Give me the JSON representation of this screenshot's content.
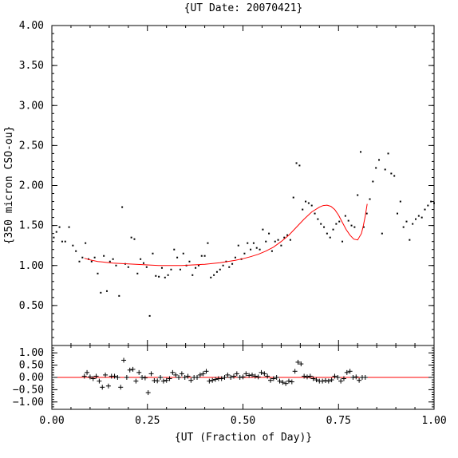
{
  "chart_data": [
    {
      "type": "scatter",
      "panel": "main",
      "title": "{UT Date: 20070421}",
      "xlabel": "",
      "ylabel": "{350 micron CSO-ou}",
      "xlim": [
        0.0,
        1.0
      ],
      "ylim": [
        0.0,
        4.0
      ],
      "xticks": [
        0.0,
        0.25,
        0.5,
        0.75,
        1.0
      ],
      "yticks": [
        0.5,
        1.0,
        1.5,
        2.0,
        2.5,
        3.0,
        3.5,
        4.0
      ],
      "ytick_labels": [
        "0.50",
        "1.00",
        "1.50",
        "2.00",
        "2.50",
        "3.00",
        "3.50",
        "4.00"
      ],
      "xtick_labels": [
        "",
        "",
        "",
        "",
        ""
      ],
      "series": [
        {
          "kind": "points",
          "color": "#000000",
          "x": [
            0.005,
            0.012,
            0.02,
            0.027,
            0.035,
            0.045,
            0.055,
            0.063,
            0.072,
            0.08,
            0.088,
            0.096,
            0.104,
            0.112,
            0.12,
            0.128,
            0.136,
            0.144,
            0.152,
            0.16,
            0.168,
            0.176,
            0.184,
            0.192,
            0.2,
            0.208,
            0.216,
            0.224,
            0.232,
            0.24,
            0.248,
            0.256,
            0.264,
            0.272,
            0.28,
            0.288,
            0.296,
            0.304,
            0.312,
            0.32,
            0.328,
            0.336,
            0.344,
            0.352,
            0.36,
            0.368,
            0.376,
            0.384,
            0.392,
            0.4,
            0.408,
            0.416,
            0.424,
            0.432,
            0.44,
            0.448,
            0.456,
            0.464,
            0.472,
            0.48,
            0.488,
            0.496,
            0.504,
            0.512,
            0.52,
            0.528,
            0.536,
            0.544,
            0.552,
            0.56,
            0.568,
            0.576,
            0.584,
            0.592,
            0.6,
            0.608,
            0.616,
            0.624,
            0.632,
            0.64,
            0.648,
            0.656,
            0.664,
            0.672,
            0.68,
            0.688,
            0.696,
            0.704,
            0.712,
            0.72,
            0.728,
            0.736,
            0.744,
            0.752,
            0.76,
            0.768,
            0.776,
            0.784,
            0.792,
            0.8,
            0.808,
            0.816,
            0.824,
            0.832,
            0.84,
            0.848,
            0.856,
            0.864,
            0.872,
            0.88,
            0.888,
            0.896,
            0.904,
            0.912,
            0.92,
            0.928,
            0.936,
            0.944,
            0.952,
            0.96,
            0.968,
            0.976,
            0.984,
            0.992,
            1.0
          ],
          "y": [
            1.35,
            1.42,
            1.48,
            1.3,
            1.3,
            1.48,
            1.25,
            1.18,
            1.05,
            1.1,
            1.28,
            1.08,
            1.05,
            1.1,
            0.9,
            0.66,
            1.12,
            0.68,
            1.05,
            1.08,
            1.0,
            0.62,
            1.73,
            1.02,
            0.98,
            1.35,
            1.33,
            0.9,
            1.08,
            1.03,
            0.98,
            0.37,
            1.15,
            0.87,
            0.86,
            0.97,
            0.85,
            0.88,
            0.95,
            1.2,
            1.1,
            0.95,
            1.15,
            1.0,
            1.05,
            0.88,
            0.97,
            1.0,
            1.12,
            1.12,
            1.28,
            0.85,
            0.88,
            0.92,
            0.95,
            1.0,
            1.05,
            0.98,
            1.02,
            1.1,
            1.25,
            1.08,
            1.15,
            1.28,
            1.2,
            1.28,
            1.22,
            1.2,
            1.45,
            1.3,
            1.4,
            1.18,
            1.3,
            1.32,
            1.25,
            1.35,
            1.38,
            1.32,
            1.85,
            2.28,
            2.25,
            1.7,
            1.8,
            1.78,
            1.75,
            1.65,
            1.58,
            1.52,
            1.48,
            1.4,
            1.35,
            1.45,
            1.52,
            1.55,
            1.3,
            1.62,
            1.56,
            1.5,
            1.48,
            1.88,
            2.42,
            1.48,
            1.65,
            1.83,
            2.05,
            2.22,
            2.32,
            1.4,
            2.2,
            2.4,
            2.15,
            2.12,
            1.65,
            1.8,
            1.48,
            1.55,
            1.32,
            1.52,
            1.58,
            1.62,
            1.6,
            1.7,
            1.75,
            1.8,
            1.78
          ]
        },
        {
          "kind": "fit-line",
          "color": "#ff0000",
          "x": [
            0.085,
            0.1,
            0.12,
            0.14,
            0.16,
            0.18,
            0.2,
            0.22,
            0.24,
            0.26,
            0.28,
            0.3,
            0.32,
            0.34,
            0.36,
            0.38,
            0.4,
            0.42,
            0.44,
            0.46,
            0.48,
            0.5,
            0.52,
            0.54,
            0.56,
            0.58,
            0.6,
            0.62,
            0.64,
            0.66,
            0.68,
            0.7,
            0.71,
            0.72,
            0.73,
            0.74,
            0.75,
            0.76,
            0.77,
            0.78,
            0.79,
            0.8,
            0.81,
            0.815,
            0.82,
            0.825
          ],
          "y": [
            1.09,
            1.07,
            1.05,
            1.04,
            1.03,
            1.025,
            1.02,
            1.015,
            1.01,
            1.005,
            1.0,
            1.0,
            1.0,
            1.0,
            1.005,
            1.01,
            1.015,
            1.025,
            1.035,
            1.05,
            1.065,
            1.085,
            1.11,
            1.14,
            1.18,
            1.23,
            1.3,
            1.38,
            1.48,
            1.58,
            1.67,
            1.73,
            1.75,
            1.755,
            1.74,
            1.7,
            1.63,
            1.54,
            1.45,
            1.38,
            1.33,
            1.32,
            1.4,
            1.5,
            1.62,
            1.77
          ]
        }
      ]
    },
    {
      "type": "scatter",
      "panel": "residuals",
      "title": "",
      "xlabel": "{UT (Fraction of Day)}",
      "ylabel": "",
      "xlim": [
        0.0,
        1.0
      ],
      "ylim": [
        -1.3,
        1.3
      ],
      "xticks": [
        0.0,
        0.25,
        0.5,
        0.75,
        1.0
      ],
      "xtick_labels": [
        "0.00",
        "0.25",
        "0.50",
        "0.75",
        "1.00"
      ],
      "yticks": [
        -1.0,
        -0.5,
        0.0,
        0.5,
        1.0
      ],
      "ytick_labels": [
        "−1.00",
        "−0.50",
        "0.00",
        "0.50",
        "1.00"
      ],
      "series": [
        {
          "kind": "plus-markers",
          "color": "#000000",
          "x": [
            0.085,
            0.092,
            0.1,
            0.108,
            0.116,
            0.124,
            0.132,
            0.14,
            0.148,
            0.156,
            0.164,
            0.172,
            0.18,
            0.188,
            0.196,
            0.204,
            0.212,
            0.22,
            0.228,
            0.236,
            0.244,
            0.252,
            0.26,
            0.268,
            0.276,
            0.284,
            0.292,
            0.3,
            0.308,
            0.316,
            0.324,
            0.332,
            0.34,
            0.348,
            0.356,
            0.364,
            0.372,
            0.38,
            0.388,
            0.396,
            0.404,
            0.412,
            0.42,
            0.428,
            0.436,
            0.444,
            0.452,
            0.46,
            0.468,
            0.476,
            0.484,
            0.492,
            0.5,
            0.508,
            0.516,
            0.524,
            0.532,
            0.54,
            0.548,
            0.556,
            0.564,
            0.572,
            0.58,
            0.588,
            0.596,
            0.604,
            0.612,
            0.62,
            0.628,
            0.636,
            0.644,
            0.652,
            0.66,
            0.668,
            0.676,
            0.684,
            0.692,
            0.7,
            0.708,
            0.716,
            0.724,
            0.732,
            0.74,
            0.748,
            0.756,
            0.764,
            0.772,
            0.78,
            0.788,
            0.796,
            0.804,
            0.812,
            0.82
          ],
          "y": [
            0.05,
            0.2,
            0.02,
            -0.05,
            0.05,
            -0.15,
            -0.4,
            0.1,
            -0.35,
            0.05,
            0.05,
            0.0,
            -0.4,
            0.7,
            0.0,
            0.3,
            0.33,
            -0.15,
            0.2,
            0.0,
            -0.02,
            -0.62,
            0.15,
            -0.13,
            -0.14,
            0.0,
            -0.15,
            -0.12,
            -0.05,
            0.2,
            0.1,
            0.0,
            0.15,
            0.0,
            0.05,
            -0.12,
            0.0,
            0.0,
            0.1,
            0.15,
            0.25,
            -0.15,
            -0.12,
            -0.08,
            -0.05,
            -0.05,
            0.0,
            0.1,
            0.0,
            0.05,
            0.15,
            0.0,
            0.02,
            0.15,
            0.08,
            0.1,
            0.05,
            0.02,
            0.2,
            0.15,
            0.05,
            -0.12,
            -0.05,
            0.0,
            -0.15,
            -0.2,
            -0.25,
            -0.15,
            -0.18,
            0.25,
            0.62,
            0.55,
            0.05,
            0.02,
            0.05,
            -0.05,
            -0.1,
            -0.15,
            -0.15,
            -0.13,
            -0.15,
            -0.1,
            0.05,
            0.0,
            -0.15,
            -0.05,
            0.2,
            0.25,
            0.0,
            0.02,
            -0.12,
            0.0,
            0.0
          ]
        },
        {
          "kind": "zero-line",
          "color": "#ff0000",
          "y": 0.0
        }
      ]
    }
  ]
}
